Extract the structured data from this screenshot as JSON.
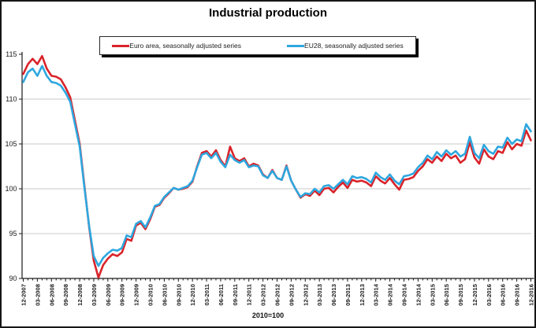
{
  "title": "Industrial production",
  "note": "2010=100",
  "legend": {
    "items": [
      {
        "label": "Euro area, seasonally adjusted series",
        "color": "#d9232a"
      },
      {
        "label": "EU28, seasonally adjusted series",
        "color": "#2ea7df"
      }
    ]
  },
  "colors": {
    "grid": "#c9c9c9",
    "axis": "#1a1a1a",
    "text": "#1a1a1a"
  },
  "chart_data": {
    "type": "line",
    "title": "Industrial production",
    "annotation": "2010=100",
    "x_unit": "month",
    "x_start": "12-2007",
    "x_end": "12-2016",
    "xtick_labels": [
      "12-2007",
      "03-2008",
      "06-2008",
      "09-2008",
      "12-2008",
      "03-2009",
      "06-2009",
      "09-2009",
      "12-2009",
      "03-2010",
      "06-2010",
      "09-2010",
      "12-2010",
      "03-2011",
      "06-2011",
      "09-2011",
      "12-2011",
      "03-2012",
      "06-2012",
      "09-2012",
      "12-2012",
      "03-2013",
      "06-2013",
      "09-2013",
      "12-2013",
      "03-2014",
      "06-2014",
      "09-2014",
      "12-2014",
      "03-2015",
      "06-2015",
      "09-2015",
      "12-2015",
      "03-2016",
      "06-2016",
      "09-2016",
      "12-2016"
    ],
    "xtick_every_n_months": 3,
    "ytick_labels": [
      90,
      95,
      100,
      105,
      110,
      115
    ],
    "ylim": [
      90,
      115
    ],
    "grid": "horizontal",
    "grid_values": [
      95,
      100,
      105,
      110
    ],
    "legend_position": "top-center",
    "series": [
      {
        "name": "Euro area, seasonally adjusted series",
        "color": "#d9232a",
        "values": [
          112.8,
          113.9,
          114.5,
          113.9,
          114.8,
          113.4,
          112.6,
          112.5,
          112.2,
          111.3,
          110.2,
          107.6,
          105.0,
          100.4,
          95.8,
          92.0,
          90.1,
          91.5,
          92.2,
          92.7,
          92.5,
          92.9,
          94.4,
          94.2,
          95.9,
          96.2,
          95.5,
          96.6,
          98.0,
          98.2,
          99.0,
          99.5,
          100.1,
          99.9,
          100.0,
          100.2,
          100.8,
          102.5,
          104.0,
          104.2,
          103.6,
          104.3,
          103.2,
          102.5,
          104.7,
          103.4,
          103.1,
          103.4,
          102.5,
          102.8,
          102.6,
          101.6,
          101.2,
          102.1,
          101.2,
          101.0,
          102.6,
          100.9,
          99.9,
          99.0,
          99.4,
          99.2,
          99.8,
          99.3,
          100.0,
          100.1,
          99.6,
          100.2,
          100.7,
          100.1,
          101.0,
          100.8,
          100.9,
          100.7,
          100.3,
          101.4,
          100.9,
          100.6,
          101.2,
          100.5,
          99.9,
          101.0,
          101.1,
          101.3,
          102.0,
          102.5,
          103.3,
          102.9,
          103.6,
          103.1,
          103.9,
          103.4,
          103.7,
          102.9,
          103.3,
          105.2,
          103.5,
          102.8,
          104.4,
          103.6,
          103.3,
          104.2,
          104.0,
          105.2,
          104.4,
          105.0,
          104.8,
          106.5,
          105.4
        ]
      },
      {
        "name": "EU28, seasonally adjusted series",
        "color": "#2ea7df",
        "values": [
          111.9,
          113.0,
          113.4,
          112.6,
          113.7,
          112.6,
          111.9,
          111.8,
          111.5,
          110.7,
          109.7,
          107.2,
          104.7,
          100.2,
          95.9,
          92.5,
          91.4,
          92.3,
          92.8,
          93.2,
          93.1,
          93.4,
          94.8,
          94.6,
          96.1,
          96.4,
          95.7,
          96.8,
          98.1,
          98.3,
          99.1,
          99.6,
          100.1,
          99.9,
          100.1,
          100.3,
          100.9,
          102.4,
          103.8,
          104.0,
          103.4,
          104.0,
          103.0,
          102.4,
          103.8,
          103.2,
          102.9,
          103.2,
          102.4,
          102.6,
          102.5,
          101.5,
          101.2,
          102.0,
          101.2,
          101.0,
          102.5,
          100.9,
          99.9,
          99.1,
          99.5,
          99.4,
          100.0,
          99.6,
          100.3,
          100.4,
          100.0,
          100.5,
          101.0,
          100.5,
          101.4,
          101.2,
          101.3,
          101.1,
          100.7,
          101.8,
          101.3,
          101.0,
          101.6,
          100.9,
          100.5,
          101.4,
          101.5,
          101.7,
          102.4,
          102.9,
          103.7,
          103.3,
          104.1,
          103.6,
          104.3,
          103.8,
          104.2,
          103.6,
          103.9,
          105.8,
          104.0,
          103.4,
          104.9,
          104.2,
          103.9,
          104.7,
          104.6,
          105.7,
          105.0,
          105.5,
          105.3,
          107.2,
          106.4
        ]
      }
    ]
  }
}
